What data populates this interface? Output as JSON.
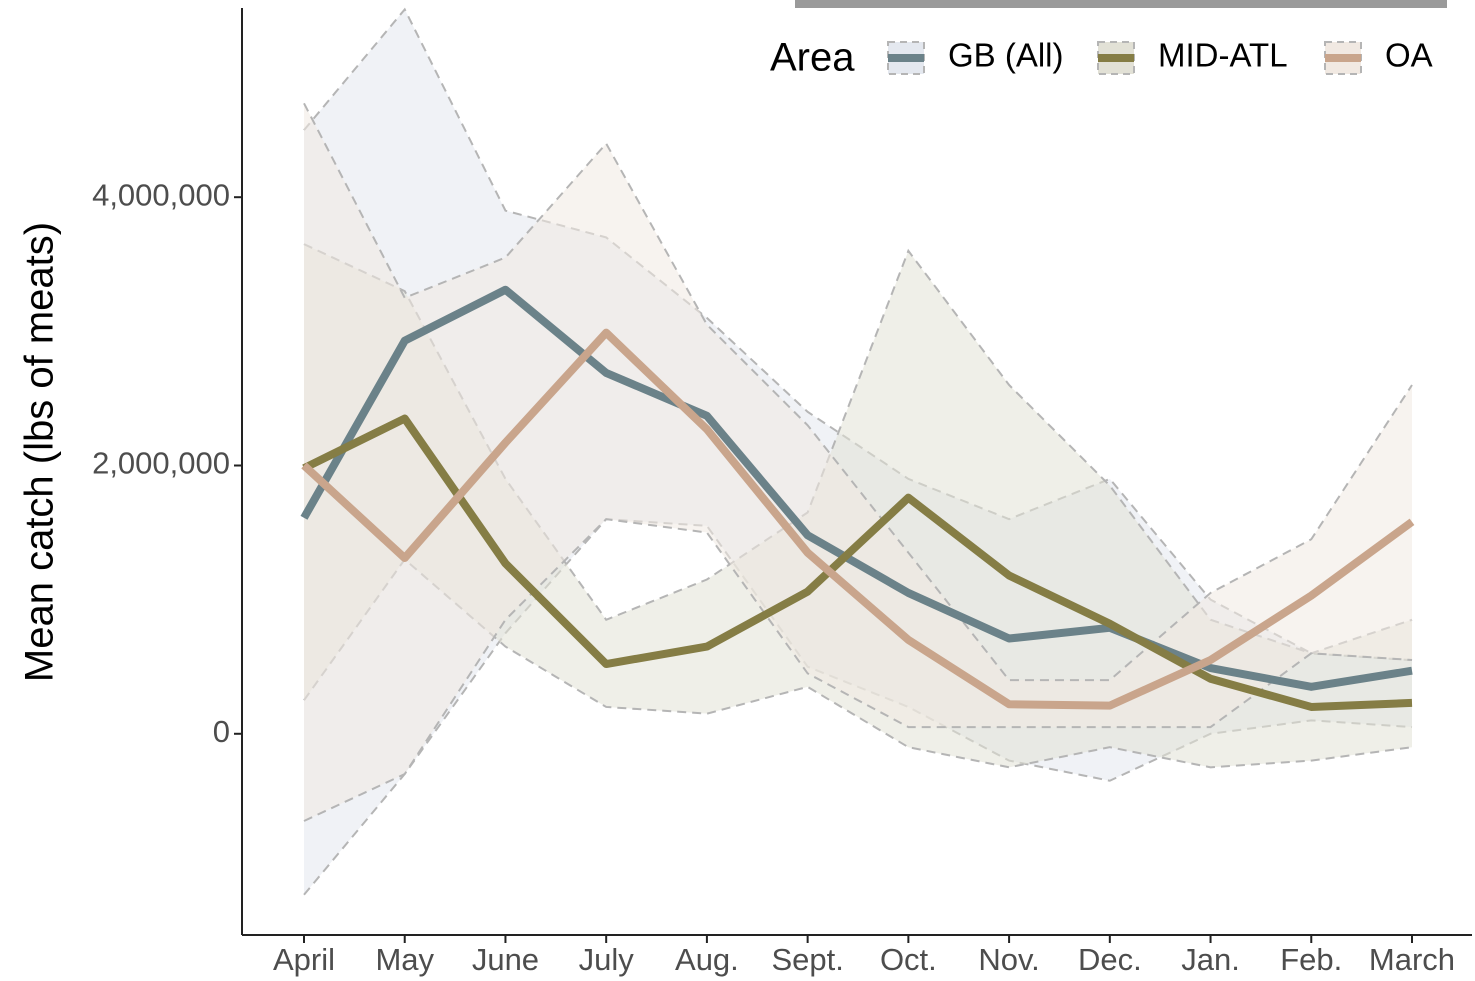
{
  "chart_data": {
    "type": "line",
    "y_label": "Mean catch (lbs of meats)",
    "legend_title": "Area",
    "categories": [
      "April",
      "May",
      "June",
      "July",
      "Aug.",
      "Sept.",
      "Oct.",
      "Nov.",
      "Dec.",
      "Jan.",
      "Feb.",
      "March"
    ],
    "ylim": [
      -1500000,
      5470000
    ],
    "yticks": [
      {
        "value": 0,
        "label": "0"
      },
      {
        "value": 2000000,
        "label": "2,000,000"
      },
      {
        "value": 4000000,
        "label": "4,000,000"
      }
    ],
    "series": [
      {
        "name": "GB (All)",
        "color": "#6b8289",
        "fill": "#e4e8ef",
        "values": [
          1610000,
          2930000,
          3310000,
          2690000,
          2370000,
          1480000,
          1050000,
          710000,
          790000,
          490000,
          350000,
          470000
        ],
        "upper": [
          4500000,
          5400000,
          3900000,
          3700000,
          3100000,
          2400000,
          1900000,
          1600000,
          1900000,
          1000000,
          600000,
          550000
        ],
        "lower": [
          -1200000,
          -300000,
          750000,
          1600000,
          1550000,
          500000,
          200000,
          -200000,
          -350000,
          0,
          100000,
          50000
        ]
      },
      {
        "name": "MID-ATL",
        "color": "#857d45",
        "fill": "#e2e1d6",
        "values": [
          1980000,
          2350000,
          1270000,
          520000,
          650000,
          1060000,
          1760000,
          1180000,
          820000,
          410000,
          200000,
          230000
        ],
        "upper": [
          3650000,
          3300000,
          1900000,
          850000,
          1150000,
          1650000,
          3600000,
          2600000,
          1850000,
          850000,
          600000,
          850000
        ],
        "lower": [
          250000,
          1300000,
          650000,
          200000,
          150000,
          350000,
          -100000,
          -250000,
          -100000,
          -250000,
          -200000,
          -100000
        ]
      },
      {
        "name": "OA",
        "color": "#c9a58c",
        "fill": "#f1e9e2",
        "values": [
          2000000,
          1310000,
          2170000,
          2990000,
          2270000,
          1350000,
          700000,
          220000,
          210000,
          550000,
          1030000,
          1580000
        ],
        "upper": [
          4700000,
          3250000,
          3550000,
          4400000,
          3050000,
          2300000,
          1350000,
          400000,
          400000,
          1050000,
          1450000,
          2600000
        ],
        "lower": [
          -650000,
          -300000,
          850000,
          1600000,
          1500000,
          450000,
          50000,
          50000,
          50000,
          50000,
          600000,
          550000
        ]
      }
    ]
  }
}
